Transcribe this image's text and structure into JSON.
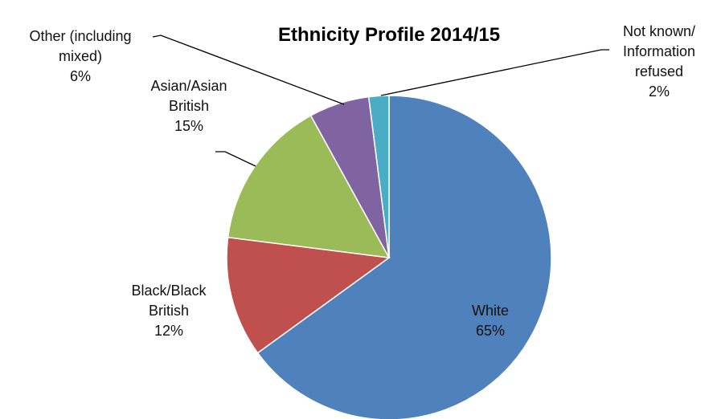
{
  "chart_data": {
    "type": "pie",
    "title": "Ethnicity Profile 2014/15",
    "categories": [
      "White",
      "Black/Black\nBritish",
      "Asian/Asian\nBritish",
      "Other (including\nmixed)",
      "Not known/\nInformation\nrefused"
    ],
    "values": [
      65,
      12,
      15,
      6,
      2
    ],
    "value_labels": [
      "65%",
      "12%",
      "15%",
      "6%",
      "2%"
    ],
    "colors": [
      "#4f81bd",
      "#c0504d",
      "#9bbb59",
      "#8064a2",
      "#4bacc6"
    ]
  }
}
